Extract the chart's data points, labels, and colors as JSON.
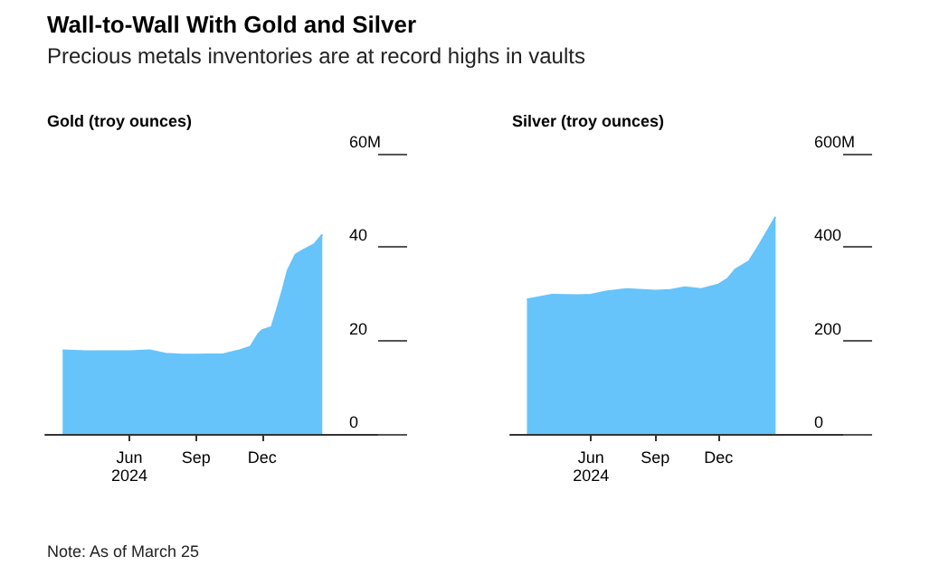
{
  "chart_data": [
    {
      "type": "area",
      "title": "Wall-to-Wall With Gold and Silver",
      "subtitle": "Precious metals inventories are at record highs in vaults",
      "ylabel": "Gold (troy ounces)",
      "x": [
        "2024-03-01",
        "2024-04-01",
        "2024-05-09",
        "2024-06-01",
        "2024-06-29",
        "2024-07-21",
        "2024-08-12",
        "2024-09-01",
        "2024-10-09",
        "2024-10-31",
        "2024-11-15",
        "2024-11-26",
        "2024-12-01",
        "2024-12-14",
        "2024-12-21",
        "2024-12-29",
        "2025-01-05",
        "2025-01-16",
        "2025-01-27",
        "2025-02-11",
        "2025-02-22"
      ],
      "series": [
        {
          "color": "#66c4fa",
          "values": [
            17.9,
            17.7,
            17.7,
            17.7,
            17.9,
            17.2,
            17.0,
            17.0,
            17.1,
            17.9,
            18.7,
            21.5,
            22.2,
            22.9,
            26.4,
            30.7,
            34.9,
            38.4,
            39.4,
            40.6,
            42.7
          ]
        }
      ],
      "xlim": [
        "2024-02-06",
        "2025-05-10"
      ],
      "xticks": [
        {
          "value": "2024-06-01",
          "label": "Jun\n2024"
        },
        {
          "value": "2024-09-01",
          "label": "Sep"
        },
        {
          "value": "2024-12-01",
          "label": "Dec"
        }
      ],
      "ylim": [
        0,
        60
      ],
      "yticks": [
        0,
        20,
        40,
        {
          "value": 60,
          "label": "60M"
        }
      ],
      "grid": false
    },
    {
      "type": "area",
      "ylabel": "Silver (troy ounces)",
      "annotations": [
        "Note: As of March 25"
      ],
      "x": [
        "2024-03-01",
        "2024-04-06",
        "2024-05-14",
        "2024-06-01",
        "2024-06-22",
        "2024-07-22",
        "2024-09-01",
        "2024-09-21",
        "2024-10-14",
        "2024-11-06",
        "2024-12-01",
        "2024-12-14",
        "2024-12-25",
        "2025-01-14",
        "2025-01-29",
        "2025-02-09",
        "2025-02-21"
      ],
      "series": [
        {
          "color": "#66c4fa",
          "values": [
            288,
            298,
            297,
            298,
            305,
            310,
            307,
            308,
            314,
            310,
            320,
            332,
            352,
            370,
            406,
            434,
            465
          ]
        }
      ],
      "xlim": [
        "2024-02-06",
        "2025-05-29"
      ],
      "xticks": [
        {
          "value": "2024-06-01",
          "label": "Jun\n2024"
        },
        {
          "value": "2024-09-01",
          "label": "Sep"
        },
        {
          "value": "2024-12-01",
          "label": "Dec"
        }
      ],
      "ylim": [
        0,
        600
      ],
      "yticks": [
        0,
        200,
        400,
        {
          "value": 600,
          "label": "600M"
        }
      ],
      "grid": false
    }
  ]
}
